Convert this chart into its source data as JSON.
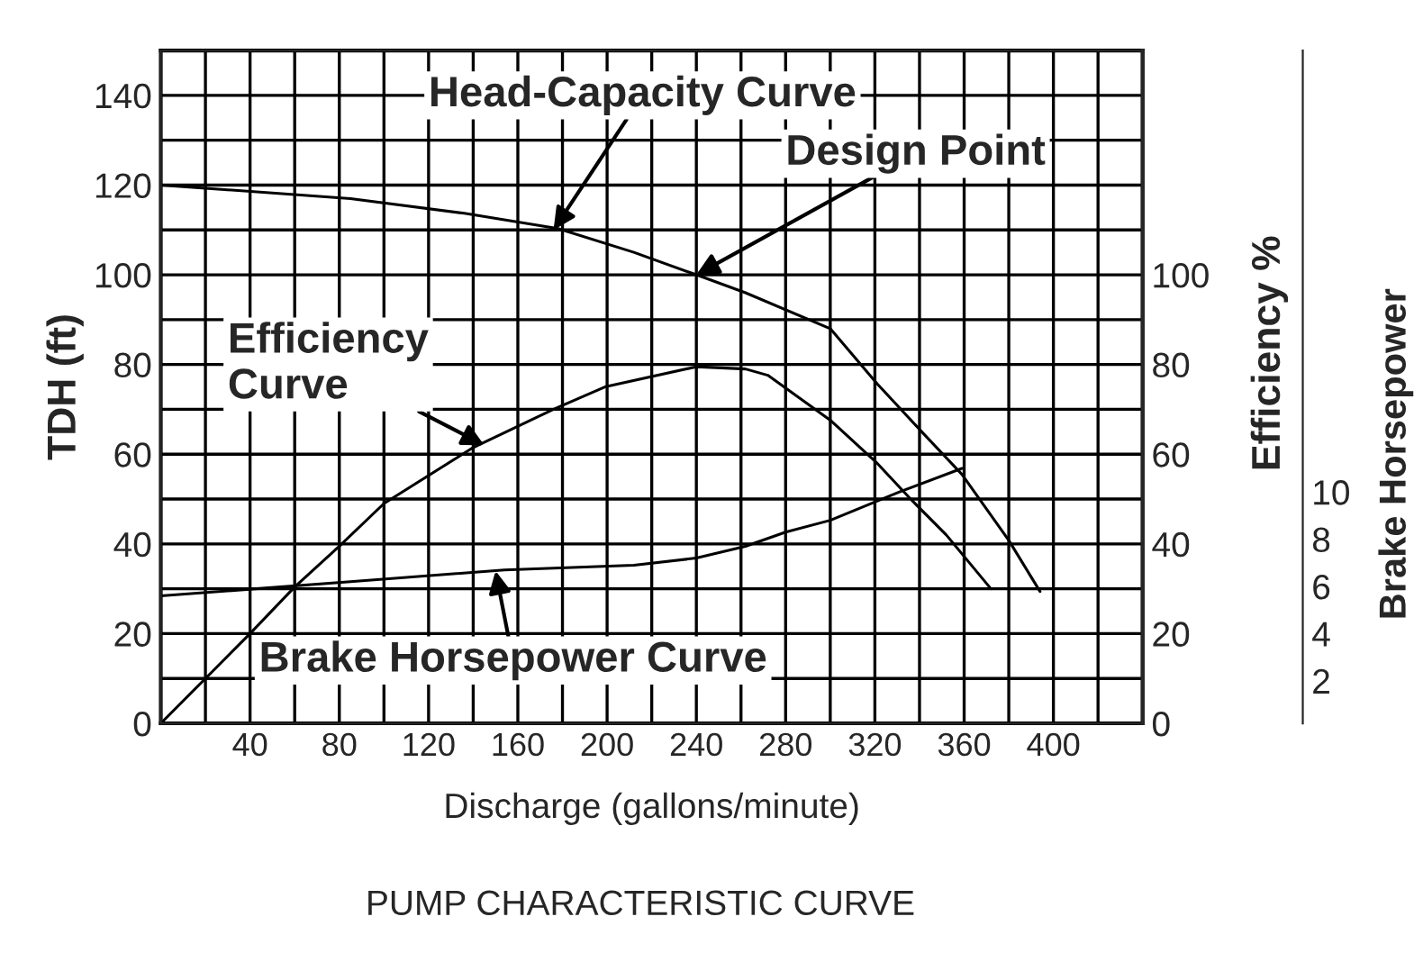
{
  "chart_data": {
    "type": "line",
    "title": "PUMP CHARACTERISTIC CURVE",
    "xlabel": "Discharge (gallons/minute)",
    "ylabel": "TDH (ft)",
    "y2label": "Efficiency %",
    "y3label": "Brake Horsepower",
    "xlim": [
      0,
      440
    ],
    "xticks": [
      {
        "value": 20,
        "label": null
      },
      40,
      {
        "value": 60,
        "label": null
      },
      80,
      {
        "value": 100,
        "label": null
      },
      120,
      {
        "value": 140,
        "label": null
      },
      160,
      {
        "value": 180,
        "label": null
      },
      200,
      {
        "value": 220,
        "label": null
      },
      240,
      {
        "value": 260,
        "label": null
      },
      280,
      {
        "value": 300,
        "label": null
      },
      320,
      {
        "value": 340,
        "label": null
      },
      360,
      {
        "value": 380,
        "label": null
      },
      400,
      {
        "value": 420,
        "label": null
      }
    ],
    "ylim": [
      0,
      150
    ],
    "yticks": [
      0,
      {
        "value": 10,
        "label": null
      },
      20,
      {
        "value": 30,
        "label": null
      },
      40,
      {
        "value": 50,
        "label": null
      },
      60,
      {
        "value": 70,
        "label": null
      },
      80,
      {
        "value": 90,
        "label": null
      },
      100,
      {
        "value": 110,
        "label": null
      },
      120,
      {
        "value": 130,
        "label": null
      },
      140
    ],
    "y2lim": [
      0,
      150
    ],
    "y2ticks": [
      0,
      20,
      40,
      60,
      80,
      100
    ],
    "y3lim": [
      0.2,
      28.7
    ],
    "y3ticks": [
      2,
      4,
      6,
      8,
      10
    ],
    "grid": true,
    "legend": false,
    "marker": "none",
    "line_style": "solid",
    "series": [
      {
        "color": "#000000",
        "x": [
          0,
          85,
          136,
          178,
          212,
          240,
          262,
          300,
          321,
          341,
          359,
          380,
          394
        ],
        "values": [
          120,
          117,
          113.7,
          110.3,
          105,
          100,
          96,
          88,
          75.7,
          65,
          55.5,
          40.8,
          29.4
        ]
      },
      {
        "color": "#000000",
        "axis": "y2",
        "x": [
          0,
          20,
          40,
          60,
          80,
          100,
          140,
          176,
          199,
          240,
          262,
          272,
          300,
          321,
          336,
          352,
          372
        ],
        "values": [
          0,
          10,
          20,
          30.4,
          39.5,
          49,
          61.5,
          70,
          75,
          79.5,
          79,
          77.6,
          67.6,
          58,
          50,
          42,
          30
        ]
      },
      {
        "color": "#000000",
        "axis": "y3",
        "x": [
          0,
          85,
          154,
          212,
          240,
          262,
          280,
          300,
          331,
          359
        ],
        "values": [
          5.6,
          6.2,
          6.7,
          6.9,
          7.2,
          7.7,
          8.3,
          8.8,
          10.0,
          11.0
        ]
      }
    ],
    "annotations": [
      {
        "text": "Head-Capacity Curve",
        "x": 176,
        "y": 110
      },
      {
        "text": "Design Point",
        "x": 240,
        "y": 100
      },
      {
        "text": "Efficiency\nCurve",
        "x": 145,
        "y": 62
      },
      {
        "text": "Brake Horsepower Curve",
        "x": 150,
        "y": 34
      }
    ]
  }
}
